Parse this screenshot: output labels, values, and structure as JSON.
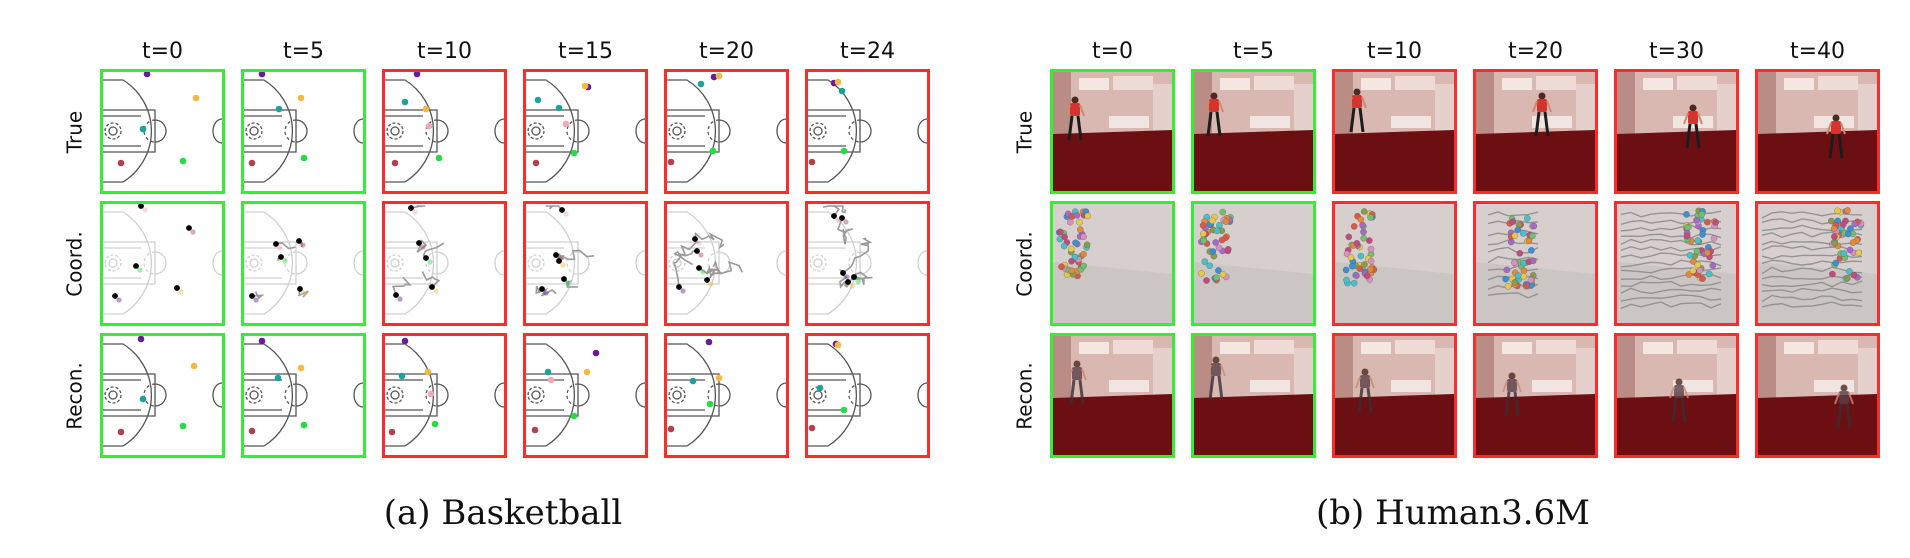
{
  "figure": {
    "panels": [
      {
        "id": "basketball",
        "caption": "(a) Basketball",
        "time_labels": [
          "t=0",
          "t=5",
          "t=10",
          "t=15",
          "t=20",
          "t=24"
        ],
        "row_labels": [
          "True",
          "Coord.",
          "Recon."
        ],
        "frame_status": [
          "observed",
          "observed",
          "predicted",
          "predicted",
          "predicted",
          "predicted"
        ]
      },
      {
        "id": "human36m",
        "caption": "(b) Human3.6M",
        "time_labels": [
          "t=0",
          "t=5",
          "t=10",
          "t=20",
          "t=30",
          "t=40"
        ],
        "row_labels": [
          "True",
          "Coord.",
          "Recon."
        ],
        "frame_status": [
          "observed",
          "observed",
          "predicted",
          "predicted",
          "predicted",
          "predicted"
        ]
      }
    ],
    "colors": {
      "observed_border": "#33ee33",
      "predicted_border": "#ff2a2a",
      "player_colors": [
        "#6a1b9a",
        "#f5b942",
        "#1aa39a",
        "#f1a7b5",
        "#b2414e",
        "#22dd44"
      ],
      "trajectory": "#9a9a9a",
      "room_wall": "#d9b8b2",
      "room_floor": "#6b0f12"
    }
  }
}
